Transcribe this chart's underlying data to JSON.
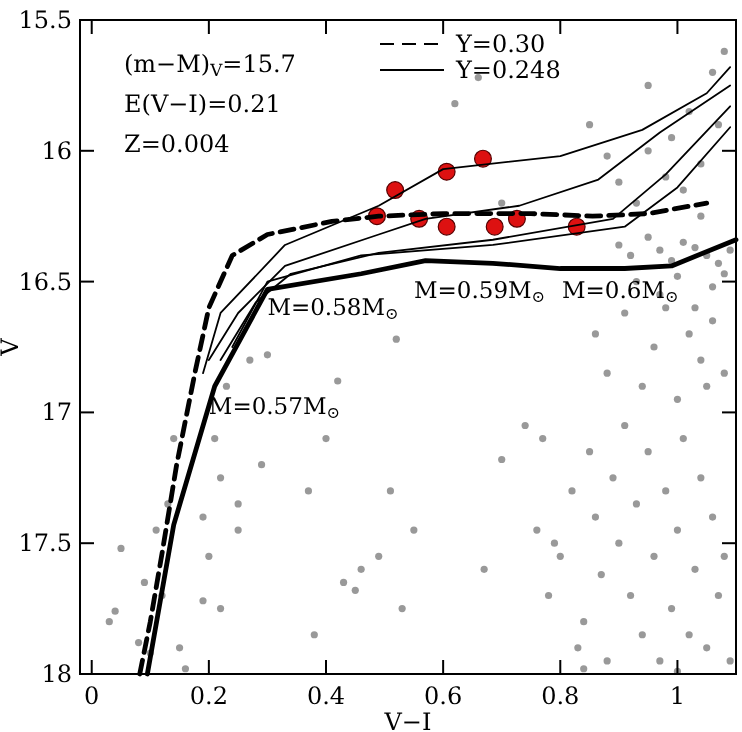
{
  "chart_data": {
    "type": "line",
    "xlabel": "V−I",
    "ylabel": "V",
    "xlim": [
      -0.02,
      1.1
    ],
    "ylim": [
      18,
      15.5
    ],
    "xticks": [
      0,
      0.2,
      0.4,
      0.6,
      0.8,
      1
    ],
    "yticks": [
      15.5,
      16,
      16.5,
      17,
      17.5,
      18
    ],
    "grid": false,
    "legend": "top right",
    "annotations": [
      "(m−M)$_{V}$=15.7",
      "E(V−I)=0.21",
      "Z=0.004",
      {
        "text": "M=0.58M$_{⊙}$",
        "x": 0.3,
        "y": 16.58
      },
      "M=0.59M$_{⊙}$",
      "M=0.6M$_{⊙}$",
      {
        "text": "M=0.57M$_{⊙}$",
        "x": 0.2,
        "y": 16.96
      }
    ],
    "series": [
      {
        "type": "scatter",
        "color": "#999999",
        "marker": "circle",
        "x": [
          0.03,
          0.05,
          0.04,
          0.08,
          0.1,
          0.12,
          0.13,
          0.15,
          0.11,
          0.09,
          0.14,
          0.16,
          0.19,
          0.2,
          0.21,
          0.22,
          0.25,
          0.25,
          0.19,
          0.22,
          0.29,
          0.37,
          0.4,
          0.43,
          0.45,
          0.46,
          0.38,
          0.23,
          0.27,
          0.3,
          0.52,
          0.42,
          0.51,
          0.49,
          0.55,
          0.53,
          0.67,
          0.7,
          0.74,
          0.77,
          0.76,
          0.79,
          0.8,
          0.78,
          0.82,
          0.83,
          0.85,
          0.86,
          0.87,
          0.84,
          0.88,
          0.89,
          0.9,
          0.91,
          0.92,
          0.93,
          0.94,
          0.95,
          0.96,
          0.97,
          0.98,
          0.99,
          1.0,
          1.01,
          1.02,
          1.03,
          1.04,
          1.05,
          1.06,
          1.07,
          1.08,
          1.09,
          0.9,
          0.92,
          0.95,
          0.97,
          0.99,
          1.01,
          1.03,
          1.05,
          1.07,
          1.09,
          0.86,
          0.88,
          0.91,
          0.94,
          0.96,
          0.98,
          1.0,
          1.02,
          1.04,
          1.06,
          1.08,
          0.93,
          0.97,
          1.0,
          1.03,
          1.06,
          1.08,
          1.05,
          0.9,
          0.95,
          0.99,
          1.02,
          1.04,
          1.07,
          0.93,
          0.98,
          1.01,
          1.04,
          0.7,
          0.62,
          0.66,
          0.85,
          0.88,
          0.95,
          1.08,
          1.06,
          0.84,
          1.0
        ],
        "values": [
          17.8,
          17.52,
          17.76,
          17.88,
          17.92,
          17.7,
          17.35,
          17.9,
          17.45,
          17.65,
          17.1,
          17.98,
          17.72,
          17.55,
          17.1,
          17.25,
          17.45,
          17.35,
          17.4,
          17.75,
          17.2,
          17.3,
          17.1,
          17.65,
          17.68,
          17.6,
          17.85,
          16.9,
          16.8,
          16.78,
          16.72,
          16.88,
          17.3,
          17.55,
          17.45,
          17.75,
          17.6,
          17.18,
          17.05,
          17.1,
          17.45,
          17.5,
          17.55,
          17.7,
          17.3,
          17.9,
          17.15,
          17.4,
          17.62,
          17.8,
          17.95,
          17.25,
          17.5,
          17.05,
          17.7,
          17.35,
          17.85,
          17.15,
          17.55,
          17.95,
          17.3,
          17.75,
          17.45,
          17.1,
          17.85,
          17.6,
          17.25,
          17.9,
          17.4,
          17.7,
          17.55,
          17.95,
          16.36,
          16.4,
          16.33,
          16.38,
          16.42,
          16.35,
          16.37,
          16.4,
          16.43,
          16.38,
          16.7,
          16.85,
          16.62,
          16.9,
          16.75,
          16.6,
          16.95,
          16.7,
          16.8,
          16.65,
          16.85,
          16.5,
          16.55,
          16.48,
          16.6,
          16.52,
          16.47,
          16.9,
          16.12,
          16.0,
          15.95,
          15.85,
          16.05,
          15.9,
          16.2,
          16.1,
          16.15,
          16.25,
          16.2,
          15.82,
          15.72,
          15.9,
          16.02,
          15.75,
          15.62,
          15.7,
          17.98,
          17.99
        ]
      },
      {
        "type": "scatter",
        "color": "#dd1111",
        "marker": "circle",
        "x": [
          0.487,
          0.518,
          0.559,
          0.606,
          0.606,
          0.668,
          0.688,
          0.726,
          0.828
        ],
        "values": [
          16.25,
          16.15,
          16.26,
          16.08,
          16.29,
          16.03,
          16.29,
          16.26,
          16.29
        ]
      },
      {
        "name": "Y=0.30",
        "color": "#000000",
        "line_style": "dashed",
        "x": [
          0.082,
          0.1,
          0.12,
          0.145,
          0.177,
          0.2,
          0.24,
          0.3,
          0.41,
          0.49,
          0.6,
          0.75,
          0.855,
          0.95,
          1.05
        ],
        "values": [
          18,
          17.8,
          17.54,
          17.2,
          16.84,
          16.6,
          16.4,
          16.32,
          16.27,
          16.25,
          16.24,
          16.24,
          16.25,
          16.24,
          16.2
        ]
      },
      {
        "name": "Y=0.248",
        "color": "#000000",
        "line_style": "solid",
        "x": [
          0.095,
          0.14,
          0.21,
          0.3,
          0.46,
          0.57,
          0.685,
          0.8,
          0.91,
          0.99,
          1.1
        ],
        "values": [
          18,
          17.43,
          16.9,
          16.53,
          16.47,
          16.42,
          16.43,
          16.45,
          16.45,
          16.44,
          16.34
        ]
      },
      {
        "color": "#000000",
        "line_style": "solid",
        "x": [
          0.19,
          0.22,
          0.33,
          0.49,
          0.6,
          0.8,
          0.94,
          1.05,
          1.09
        ],
        "values": [
          16.85,
          16.62,
          16.36,
          16.21,
          16.07,
          16.02,
          15.92,
          15.78,
          15.68
        ]
      },
      {
        "color": "#000000",
        "line_style": "solid",
        "x": [
          0.2,
          0.25,
          0.33,
          0.49,
          0.57,
          0.73,
          0.865,
          0.97,
          1.09
        ],
        "values": [
          16.8,
          16.62,
          16.44,
          16.32,
          16.26,
          16.21,
          16.11,
          15.93,
          15.75
        ]
      },
      {
        "color": "#000000",
        "line_style": "solid",
        "x": [
          0.22,
          0.28,
          0.34,
          0.49,
          0.685,
          0.89,
          0.98,
          1.09
        ],
        "values": [
          16.8,
          16.58,
          16.47,
          16.39,
          16.34,
          16.26,
          16.09,
          15.83
        ]
      },
      {
        "color": "#000000",
        "line_style": "solid",
        "x": [
          0.24,
          0.3,
          0.46,
          0.685,
          0.91,
          1.0,
          1.09
        ],
        "values": [
          16.75,
          16.5,
          16.4,
          16.36,
          16.29,
          16.14,
          15.91
        ]
      }
    ]
  }
}
